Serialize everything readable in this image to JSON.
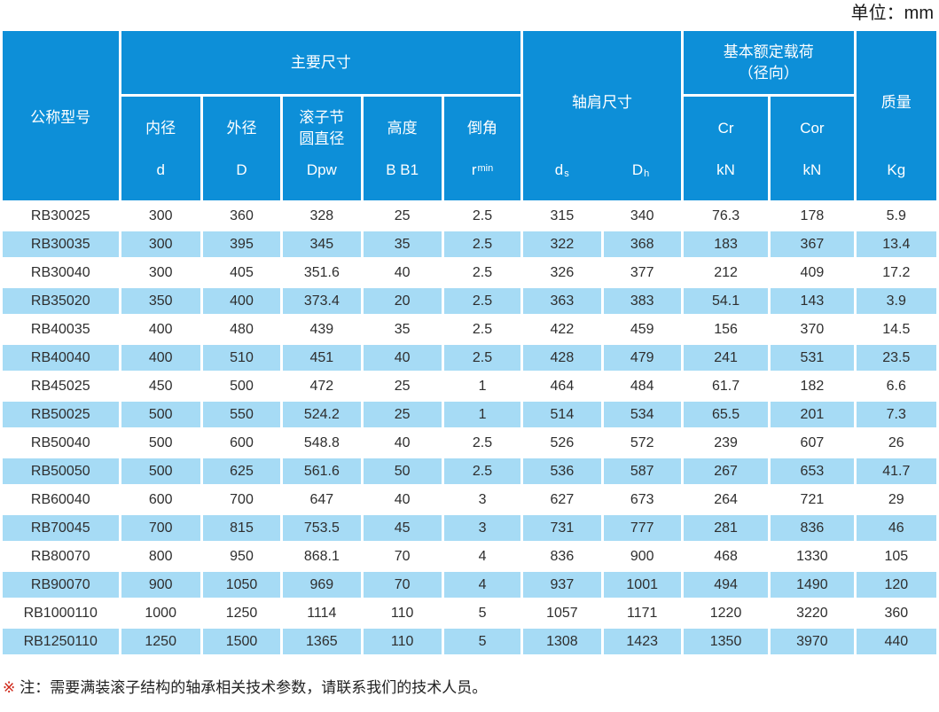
{
  "page": {
    "unit_label": "单位：mm",
    "note_mark": "※",
    "note_text": "注：需要满装滚子结构的轴承相关技术参数，请联系我们的技术人员。"
  },
  "colors": {
    "header_bg": "#0d8fd8",
    "row_alt_bg": "#a6dbf5",
    "row_bg": "#ffffff",
    "header_text": "#ffffff",
    "body_text": "#2e2e2e",
    "note_mark_color": "#cf2617"
  },
  "table": {
    "header": {
      "model": "公称型号",
      "main_dims_group": "主要尺寸",
      "shoulder_group": "轴肩尺寸",
      "load_group_line1": "基本额定载荷",
      "load_group_line2": "（径向）",
      "mass": "质量",
      "mass_unit": "Kg",
      "inner": {
        "name": "内径",
        "sym": "d"
      },
      "outer": {
        "name": "外径",
        "sym": "D"
      },
      "pitch": {
        "name": "滚子节圆直径",
        "sym": "Dpw"
      },
      "height": {
        "name": "高度",
        "sym": "B B1"
      },
      "chamfer": {
        "name": "倒角",
        "sym_main": "r",
        "sym_sub": "min"
      },
      "ds": {
        "sym_main": "d",
        "sym_sub": "s"
      },
      "dh": {
        "sym_main": "D",
        "sym_sub": "h"
      },
      "cr": {
        "name": "Cr",
        "sym": "kN"
      },
      "cor": {
        "name": "Cor",
        "sym": "kN"
      }
    },
    "rows": [
      [
        "RB30025",
        "300",
        "360",
        "328",
        "25",
        "2.5",
        "315",
        "340",
        "76.3",
        "178",
        "5.9"
      ],
      [
        "RB30035",
        "300",
        "395",
        "345",
        "35",
        "2.5",
        "322",
        "368",
        "183",
        "367",
        "13.4"
      ],
      [
        "RB30040",
        "300",
        "405",
        "351.6",
        "40",
        "2.5",
        "326",
        "377",
        "212",
        "409",
        "17.2"
      ],
      [
        "RB35020",
        "350",
        "400",
        "373.4",
        "20",
        "2.5",
        "363",
        "383",
        "54.1",
        "143",
        "3.9"
      ],
      [
        "RB40035",
        "400",
        "480",
        "439",
        "35",
        "2.5",
        "422",
        "459",
        "156",
        "370",
        "14.5"
      ],
      [
        "RB40040",
        "400",
        "510",
        "451",
        "40",
        "2.5",
        "428",
        "479",
        "241",
        "531",
        "23.5"
      ],
      [
        "RB45025",
        "450",
        "500",
        "472",
        "25",
        "1",
        "464",
        "484",
        "61.7",
        "182",
        "6.6"
      ],
      [
        "RB50025",
        "500",
        "550",
        "524.2",
        "25",
        "1",
        "514",
        "534",
        "65.5",
        "201",
        "7.3"
      ],
      [
        "RB50040",
        "500",
        "600",
        "548.8",
        "40",
        "2.5",
        "526",
        "572",
        "239",
        "607",
        "26"
      ],
      [
        "RB50050",
        "500",
        "625",
        "561.6",
        "50",
        "2.5",
        "536",
        "587",
        "267",
        "653",
        "41.7"
      ],
      [
        "RB60040",
        "600",
        "700",
        "647",
        "40",
        "3",
        "627",
        "673",
        "264",
        "721",
        "29"
      ],
      [
        "RB70045",
        "700",
        "815",
        "753.5",
        "45",
        "3",
        "731",
        "777",
        "281",
        "836",
        "46"
      ],
      [
        "RB80070",
        "800",
        "950",
        "868.1",
        "70",
        "4",
        "836",
        "900",
        "468",
        "1330",
        "105"
      ],
      [
        "RB90070",
        "900",
        "1050",
        "969",
        "70",
        "4",
        "937",
        "1001",
        "494",
        "1490",
        "120"
      ],
      [
        "RB1000110",
        "1000",
        "1250",
        "1114",
        "110",
        "5",
        "1057",
        "1171",
        "1220",
        "3220",
        "360"
      ],
      [
        "RB1250110",
        "1250",
        "1500",
        "1365",
        "110",
        "5",
        "1308",
        "1423",
        "1350",
        "3970",
        "440"
      ]
    ]
  }
}
